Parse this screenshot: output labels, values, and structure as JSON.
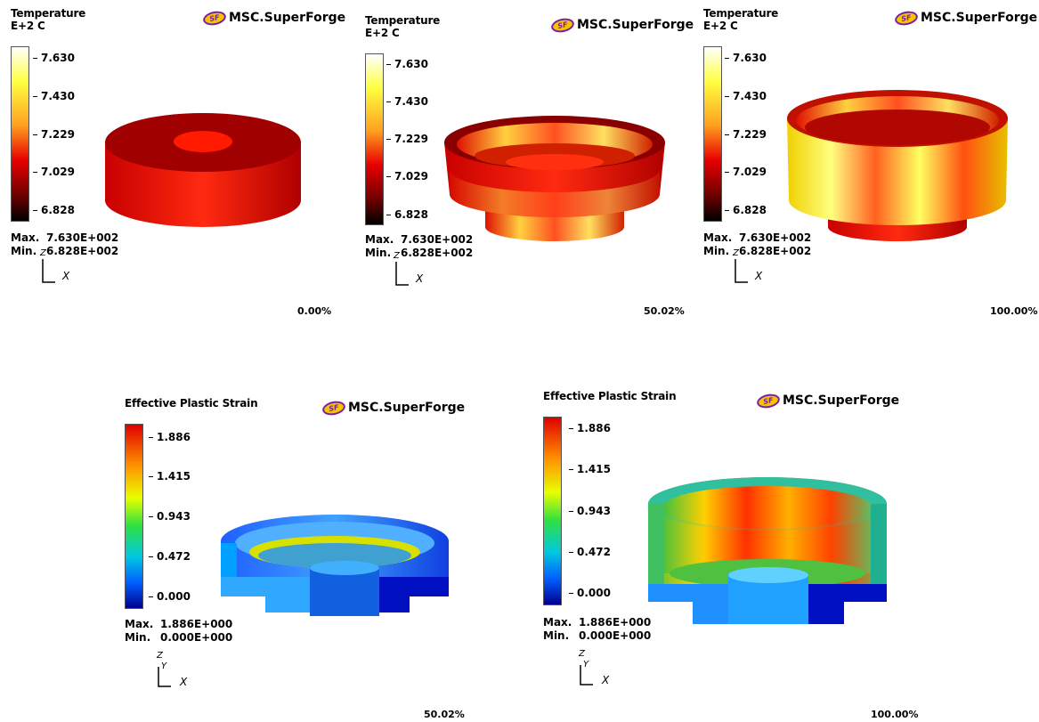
{
  "brand": "MSC.SuperForge",
  "logo_badge": "SF",
  "temperature": {
    "title_line1": "Temperature",
    "title_line2": "E+2  C",
    "ticks": [
      "7.630",
      "7.430",
      "7.229",
      "7.029",
      "6.828"
    ],
    "max_label": "Max.",
    "max_value": "7.630E+002",
    "min_label": "Min.",
    "min_value": "6.828E+002",
    "colorscale": [
      "#ffffff",
      "#ffff40",
      "#ffc020",
      "#ff6010",
      "#e00000",
      "#800000",
      "#000000"
    ]
  },
  "strain": {
    "title": "Effective Plastic Strain",
    "ticks": [
      "1.886",
      "1.415",
      "0.943",
      "0.472",
      "0.000"
    ],
    "max_label": "Max.",
    "max_value": "1.886E+000",
    "min_label": "Min.",
    "min_value": "0.000E+000",
    "colorscale": [
      "#e00000",
      "#ff8000",
      "#ffff00",
      "#40ff00",
      "#00d0a0",
      "#0080ff",
      "#0000a0"
    ]
  },
  "axes": {
    "z": "Z",
    "y": "Y",
    "x": "X"
  },
  "panels": {
    "top_left": {
      "progress": "0.00%"
    },
    "top_mid": {
      "progress": "50.02%"
    },
    "top_right": {
      "progress": "100.00%"
    },
    "bottom_left": {
      "progress": "50.02%"
    },
    "bottom_right": {
      "progress": "100.00%"
    }
  }
}
